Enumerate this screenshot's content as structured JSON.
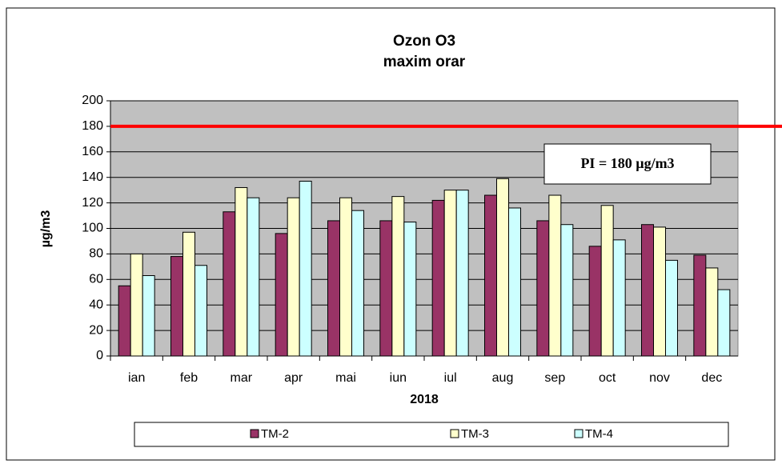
{
  "chart_data": {
    "type": "bar",
    "title": "Ozon O3",
    "subtitle": "maxim orar",
    "xlabel": "2018",
    "ylabel": "µg/m3",
    "categories": [
      "ian",
      "feb",
      "mar",
      "apr",
      "mai",
      "iun",
      "iul",
      "aug",
      "sep",
      "oct",
      "nov",
      "dec"
    ],
    "series": [
      {
        "name": "TM-2",
        "color": "#993366",
        "values": [
          55,
          78,
          113,
          96,
          106,
          106,
          122,
          126,
          106,
          86,
          103,
          79
        ]
      },
      {
        "name": "TM-3",
        "color": "#ffffcc",
        "values": [
          80,
          97,
          132,
          124,
          124,
          125,
          130,
          139,
          126,
          118,
          101,
          69
        ]
      },
      {
        "name": "TM-4",
        "color": "#ccffff",
        "values": [
          63,
          71,
          124,
          137,
          114,
          105,
          130,
          116,
          103,
          91,
          75,
          52
        ]
      }
    ],
    "reference_line": {
      "value": 180,
      "color": "#ff0000",
      "label": "PI = 180 µg/m3"
    },
    "ylim": [
      0,
      200
    ],
    "yticks": [
      0,
      20,
      40,
      60,
      80,
      100,
      120,
      140,
      160,
      180,
      200
    ],
    "grid": true,
    "legend": "bottom"
  }
}
